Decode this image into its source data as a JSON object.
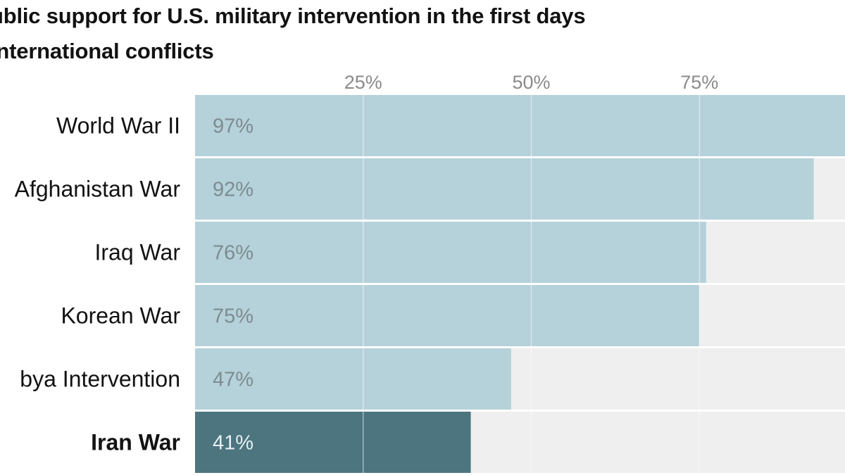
{
  "chart_data": {
    "type": "bar",
    "orientation": "horizontal",
    "title_lines": [
      "ublic support for U.S. military intervention in the first days",
      "international conflicts"
    ],
    "categories": [
      "World War II",
      "Afghanistan War",
      "Iraq War",
      "Korean War",
      "bya Intervention",
      "Iran War"
    ],
    "values": [
      97,
      92,
      76,
      75,
      47,
      41
    ],
    "value_labels": [
      "97%",
      "92%",
      "76%",
      "75%",
      "47%",
      "41%"
    ],
    "highlight": "Iran War",
    "x_ticks": [
      25,
      50,
      75
    ],
    "x_tick_labels": [
      "25%",
      "50%",
      "75%"
    ],
    "xlim": [
      0,
      100
    ],
    "grid": true,
    "colors": {
      "bar": "#b5d1da",
      "highlight_bar": "#4c7580",
      "track": "#efefef",
      "grid": "#ffffff",
      "value_label": "#7d8c90",
      "highlight_value_label": "#e8f0f2",
      "title": "#121212",
      "tick_label": "#8a8a8a"
    }
  }
}
